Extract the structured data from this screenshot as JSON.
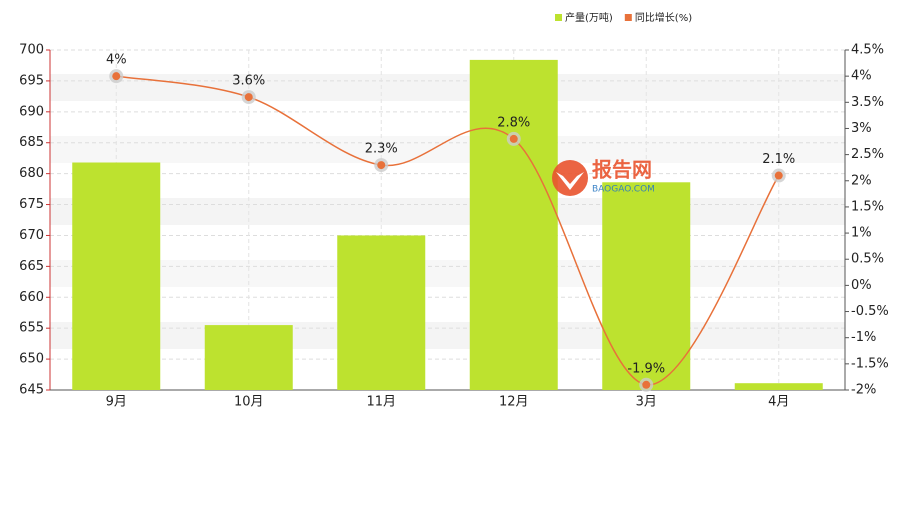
{
  "chart_data": {
    "type": "bar-line",
    "categories": [
      "9月",
      "10月",
      "11月",
      "12月",
      "3月",
      "4月"
    ],
    "series": [
      {
        "name": "产量(万吨)",
        "color": "#bde22f",
        "type": "bar",
        "values": [
          681.8,
          655.5,
          670,
          698.4,
          678.6,
          646.1
        ]
      },
      {
        "name": "同比增长(%)",
        "color": "#e8713a",
        "type": "line",
        "axis": "y2",
        "values": [
          4,
          3.6,
          2.3,
          2.8,
          -1.9,
          2.1
        ],
        "value_labels": [
          "4%",
          "3.6%",
          "2.3%",
          "2.8%",
          "-1.9%",
          "2.1%"
        ]
      }
    ],
    "ylim": [
      645,
      700
    ],
    "yticks": [
      645,
      650,
      655,
      660,
      665,
      670,
      675,
      680,
      685,
      690,
      695,
      700
    ],
    "y2lim": [
      -2,
      4.5
    ],
    "y2ticks": [
      {
        "value": -2,
        "label": "-2%"
      },
      {
        "value": -1.5,
        "label": "-1.5%"
      },
      {
        "value": -1,
        "label": "-1%"
      },
      {
        "value": -0.5,
        "label": "-0.5%"
      },
      {
        "value": 0,
        "label": "0%"
      },
      {
        "value": 0.5,
        "label": "0.5%"
      },
      {
        "value": 1,
        "label": "1%"
      },
      {
        "value": 1.5,
        "label": "1.5%"
      },
      {
        "value": 2,
        "label": "2%"
      },
      {
        "value": 2.5,
        "label": "2.5%"
      },
      {
        "value": 3,
        "label": "3%"
      },
      {
        "value": 3.5,
        "label": "3.5%"
      },
      {
        "value": 4,
        "label": "4%"
      },
      {
        "value": 4.5,
        "label": "4.5%"
      }
    ],
    "grid": true,
    "legend": "top-right"
  },
  "watermark": {
    "text": "报告网",
    "subtext": "BAOGAO.COM"
  }
}
